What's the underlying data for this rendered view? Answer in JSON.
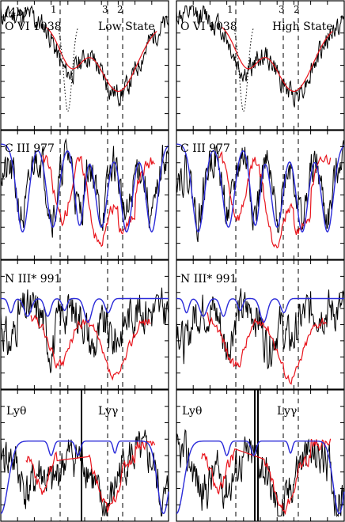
{
  "figure_label": "(4b)",
  "component_labels": [
    "1",
    "3",
    "2"
  ],
  "chart_data": [
    {
      "type": "line",
      "panel": "O VI 1038 — Low State",
      "label": "O VI 1038",
      "state_label": "Low State",
      "series": [
        "data",
        "model",
        "blend"
      ],
      "seed": 11
    },
    {
      "type": "line",
      "panel": "O VI 1038 — High State",
      "label": "O VI 1038",
      "state_label": "High State",
      "series": [
        "data",
        "model",
        "blend"
      ],
      "seed": 12
    },
    {
      "type": "line",
      "panel": "C III 977 (left)",
      "label": "C III 977",
      "series": [
        "data",
        "model",
        "fit"
      ],
      "seed": 21
    },
    {
      "type": "line",
      "panel": "C III 977 (right)",
      "label": "C III 977",
      "series": [
        "data",
        "model",
        "fit"
      ],
      "seed": 22
    },
    {
      "type": "line",
      "panel": "N III* 991 (left)",
      "label": "N III* 991",
      "series": [
        "data",
        "model",
        "fit"
      ],
      "seed": 31
    },
    {
      "type": "line",
      "panel": "N III* 991 (right)",
      "label": "N III* 991",
      "series": [
        "data",
        "model",
        "fit"
      ],
      "seed": 32
    },
    {
      "type": "line",
      "panel": "Lyθ / Lyγ (left)",
      "label": "Lyθ",
      "label2": "Lyγ",
      "series": [
        "data",
        "model",
        "fit"
      ],
      "seed": 41
    },
    {
      "type": "line",
      "panel": "Lyθ / Lyγ (right)",
      "label": "Lyθ",
      "label2": "Lyγ",
      "series": [
        "data",
        "model",
        "fit"
      ],
      "seed": 42
    }
  ],
  "colors": {
    "data": "#000000",
    "model": "#e8141c",
    "fit": "#2b2bd9"
  }
}
